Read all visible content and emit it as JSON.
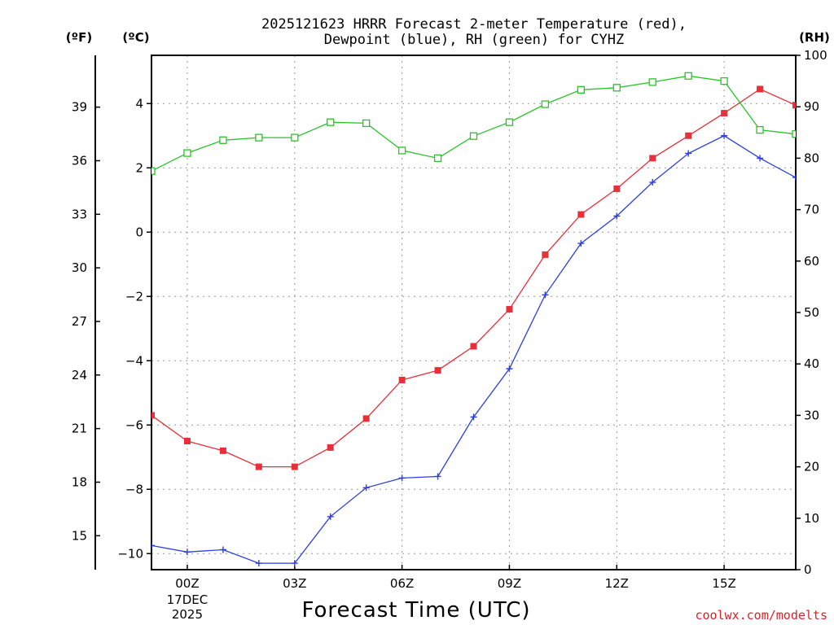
{
  "chart_data": {
    "type": "line",
    "title_line1": "2025121623 HRRR Forecast 2-meter Temperature (red),",
    "title_line2": "Dewpoint (blue), RH (green) for CYHZ",
    "xlabel": "Forecast Time (UTC)",
    "credit": "coolwx.com/modelts",
    "units": {
      "fahrenheit": "(ºF)",
      "celsius": "(ºC)",
      "rh": "(RH)"
    },
    "x_hours": [
      -1,
      0,
      1,
      2,
      3,
      4,
      5,
      6,
      7,
      8,
      9,
      10,
      11,
      12,
      13,
      14,
      15,
      16,
      17
    ],
    "x_range": [
      -1,
      17
    ],
    "x_ticks": [
      {
        "hour": 0,
        "label": "00Z",
        "sub1": "17DEC",
        "sub2": "2025"
      },
      {
        "hour": 3,
        "label": "03Z"
      },
      {
        "hour": 6,
        "label": "06Z"
      },
      {
        "hour": 9,
        "label": "09Z"
      },
      {
        "hour": 12,
        "label": "12Z"
      },
      {
        "hour": 15,
        "label": "15Z"
      }
    ],
    "celsius_axis": {
      "range": [
        -10.5,
        5.5
      ],
      "ticks": [
        -10,
        -8,
        -6,
        -4,
        -2,
        0,
        2,
        4
      ],
      "labels": [
        "−10",
        "−8",
        "−6",
        "−4",
        "−2",
        "0",
        "2",
        "4"
      ]
    },
    "fahrenheit_axis": {
      "ticks": [
        15,
        18,
        21,
        24,
        27,
        30,
        33,
        36,
        39
      ],
      "labels": [
        "15",
        "18",
        "21",
        "24",
        "27",
        "30",
        "33",
        "36",
        "39"
      ]
    },
    "rh_axis": {
      "range": [
        0,
        100
      ],
      "ticks": [
        0,
        10,
        20,
        30,
        40,
        50,
        60,
        70,
        80,
        90,
        100
      ],
      "labels": [
        "0",
        "10",
        "20",
        "30",
        "40",
        "50",
        "60",
        "70",
        "80",
        "90",
        "100"
      ]
    },
    "series": [
      {
        "name": "Temperature",
        "axis": "celsius",
        "color": "#e8303a",
        "marker": "filled-square",
        "values": [
          -5.7,
          -6.5,
          -6.8,
          -7.3,
          -7.3,
          -6.7,
          -5.8,
          -4.6,
          -4.3,
          -3.55,
          -2.4,
          -0.7,
          0.55,
          1.35,
          2.3,
          3.0,
          3.7,
          4.45,
          3.95
        ]
      },
      {
        "name": "Dewpoint",
        "axis": "celsius",
        "color": "#2b3fe0",
        "marker": "plus",
        "values": [
          -9.75,
          -9.95,
          -9.88,
          -10.3,
          -10.3,
          -8.85,
          -7.95,
          -7.65,
          -7.6,
          -5.75,
          -4.25,
          -1.95,
          -0.35,
          0.5,
          1.55,
          2.45,
          3.0,
          2.3,
          1.7
        ]
      },
      {
        "name": "RH",
        "axis": "rh",
        "color": "#28c428",
        "marker": "open-square",
        "values": [
          77.5,
          81.0,
          83.5,
          84.0,
          84.0,
          87.0,
          86.8,
          81.5,
          80.0,
          84.3,
          87.0,
          90.5,
          93.3,
          93.7,
          94.8,
          96.0,
          95.0,
          85.5,
          84.7
        ]
      }
    ]
  }
}
